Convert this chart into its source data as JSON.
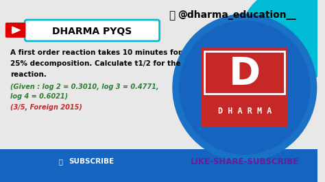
{
  "bg_color": "#e8e8e8",
  "bottom_bar_color": "#1565c0",
  "instagram_text": "@dharma_education__",
  "instagram_color": "#000000",
  "youtube_icon_color": "#e00000",
  "title_box_text": "DHARMA PYQS",
  "title_box_bg": "#ffffff",
  "title_box_border": "#00bcd4",
  "title_text_color": "#000000",
  "main_text_line1": "A first order reaction takes 10 minutes for",
  "main_text_line2": "25% decomposition. Calculate t1/2 for the",
  "main_text_line3": "reaction.",
  "main_text_color": "#000000",
  "given_text_line1": "(Given : log 2 = 0.3010, log 3 = 0.4771,",
  "given_text_line2": "log 4 = 0.6021)",
  "given_text_color": "#2e7d32",
  "marks_text": "(3/5, Foreign 2015)",
  "marks_text_color": "#c62828",
  "subscribe_btn_color": "#1565c0",
  "subscribe_text": "SUBSCRIBE",
  "subscribe_text_color": "#ffffff",
  "like_share_text": "LIKE-SHARE-SUBSCRIBE",
  "like_share_color": "#6a1b9a",
  "cyan_color": "#00bcd4",
  "logo_bg": "#c62828",
  "logo_letter": "D",
  "logo_letter_color": "#ffffff",
  "logo_text": "D H A R M A",
  "logo_text_color": "#ffffff",
  "circle_color1": "#1a72c7",
  "circle_color2": "#1565c0"
}
